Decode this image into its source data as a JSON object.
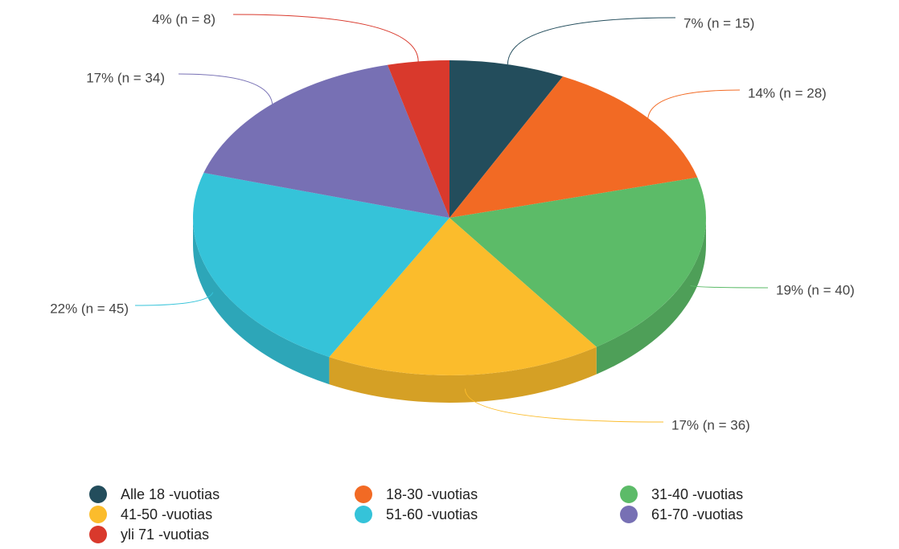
{
  "chart_data": {
    "type": "pie",
    "categories": [
      "Alle 18 -vuotias",
      "18-30 -vuotias",
      "31-40 -vuotias",
      "41-50 -vuotias",
      "51-60 -vuotias",
      "61-70 -vuotias",
      "yli 71 -vuotias"
    ],
    "values": [
      15,
      28,
      40,
      36,
      45,
      34,
      8
    ],
    "value_labels": [
      "7% (n = 15)",
      "14% (n = 28)",
      "19% (n = 40)",
      "17% (n = 36)",
      "22% (n = 45)",
      "17% (n = 34)",
      "4% (n = 8)"
    ],
    "colors": [
      "#234d5c",
      "#f26a24",
      "#5cbb68",
      "#fbbc2c",
      "#35c3d9",
      "#7770b4",
      "#d9392c"
    ],
    "legend": "bottom"
  }
}
